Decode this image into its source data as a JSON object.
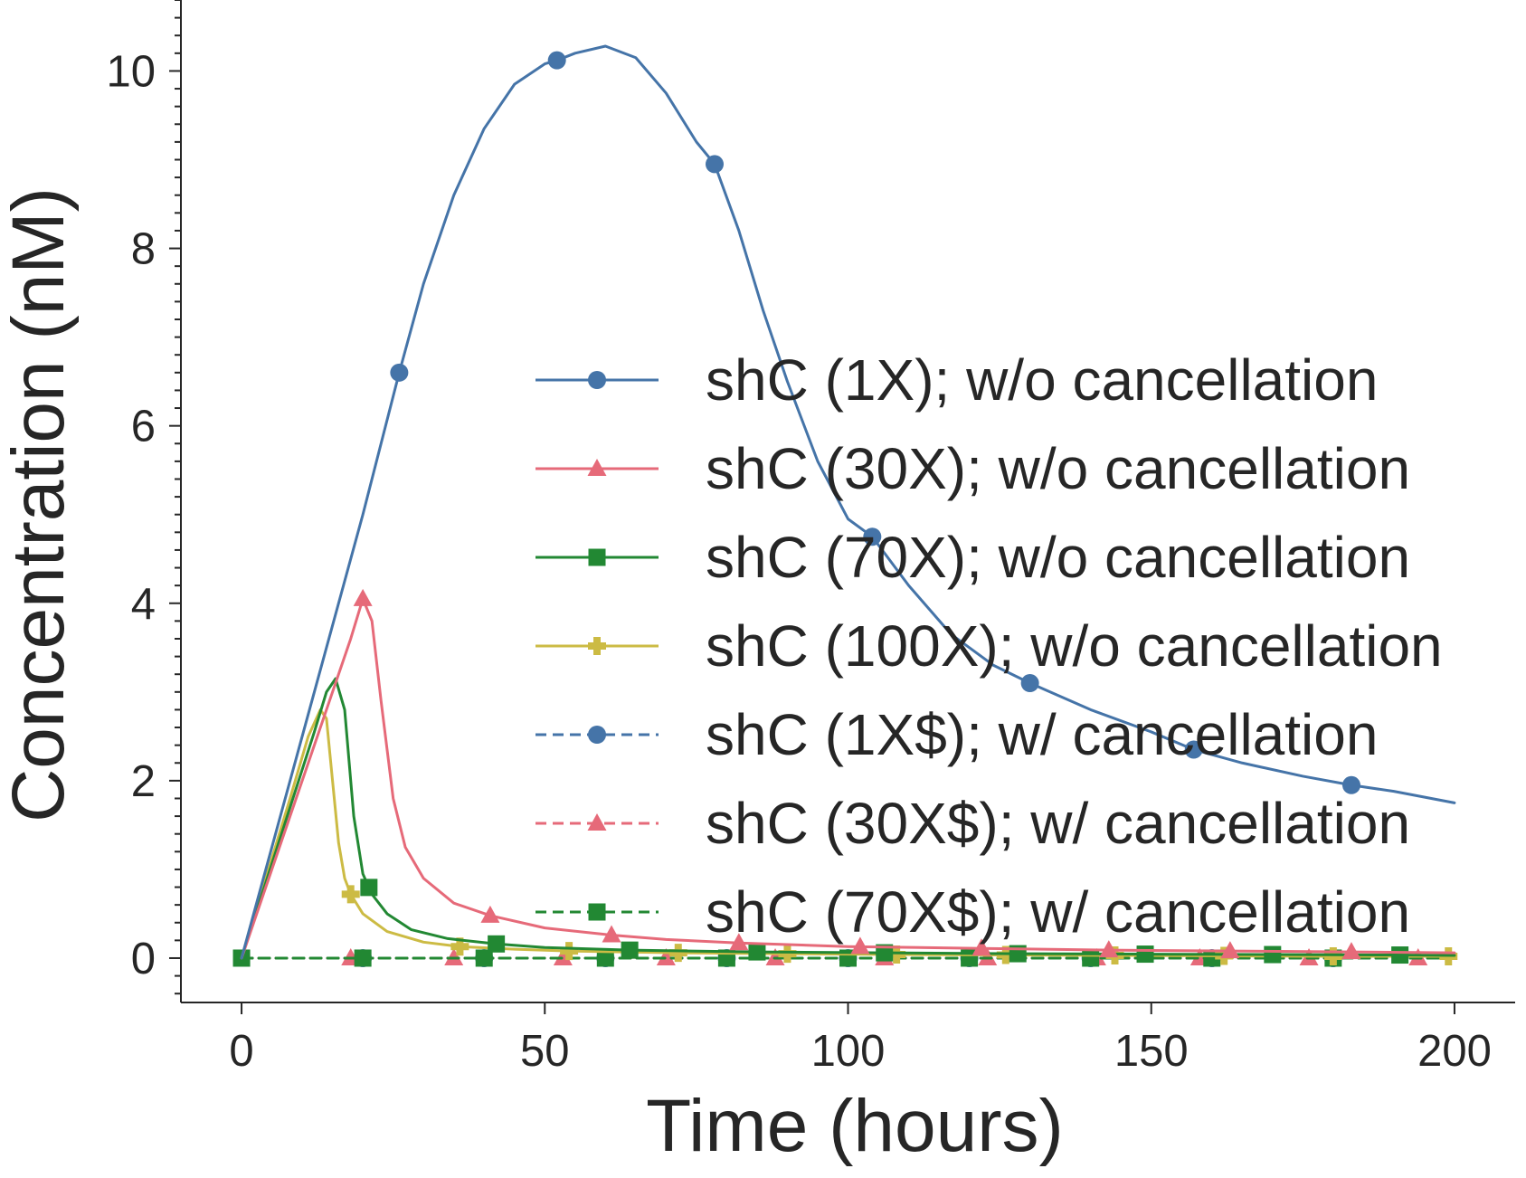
{
  "chart_data": {
    "type": "line",
    "title": "",
    "xlabel": "Time (hours)",
    "ylabel": "Concentration (nM)",
    "xlim": [
      -10,
      210
    ],
    "ylim": [
      -0.5,
      10.8
    ],
    "xticks": [
      0,
      50,
      100,
      150,
      200
    ],
    "yticks": [
      0,
      2,
      4,
      6,
      8,
      10
    ],
    "grid": false,
    "legend_position": "center-right",
    "series": [
      {
        "name": "shC (1X); w/o cancellation",
        "color": "#4574a8",
        "dash": "solid",
        "marker": "circle",
        "x": [
          0,
          4,
          8,
          12,
          16,
          20,
          26,
          30,
          35,
          40,
          45,
          50,
          52,
          55,
          60,
          65,
          70,
          75,
          78,
          82,
          86,
          90,
          95,
          100,
          104,
          110,
          117,
          124,
          130,
          140,
          150,
          157,
          165,
          175,
          183,
          190,
          200
        ],
        "y": [
          0,
          1.0,
          2.0,
          3.0,
          4.0,
          5.0,
          6.6,
          7.6,
          8.6,
          9.35,
          9.85,
          10.08,
          10.12,
          10.2,
          10.28,
          10.15,
          9.75,
          9.2,
          8.95,
          8.2,
          7.3,
          6.5,
          5.6,
          4.95,
          4.75,
          4.2,
          3.65,
          3.3,
          3.1,
          2.8,
          2.55,
          2.35,
          2.2,
          2.05,
          1.95,
          1.88,
          1.75
        ],
        "marker_x": [
          26,
          52,
          78,
          104,
          130,
          157,
          183
        ]
      },
      {
        "name": "shC (30X); w/o cancellation",
        "color": "#e66a79",
        "dash": "solid",
        "marker": "triangle",
        "x": [
          0,
          5,
          10,
          15,
          18,
          20,
          21.5,
          23,
          25,
          27,
          30,
          35,
          41,
          50,
          61,
          70,
          82,
          100,
          122,
          143,
          163,
          183,
          200
        ],
        "y": [
          0,
          1.0,
          2.0,
          3.0,
          3.6,
          4.05,
          3.8,
          2.9,
          1.8,
          1.25,
          0.9,
          0.62,
          0.48,
          0.34,
          0.26,
          0.21,
          0.17,
          0.13,
          0.11,
          0.09,
          0.08,
          0.07,
          0.06
        ],
        "marker_x": [
          20,
          41,
          61,
          82,
          102,
          122,
          143,
          163,
          183
        ]
      },
      {
        "name": "shC (70X); w/o cancellation",
        "color": "#228833",
        "dash": "solid",
        "marker": "square",
        "x": [
          0,
          4,
          8,
          12,
          14,
          15.5,
          17,
          18.5,
          20,
          21.5,
          24,
          28,
          34,
          42,
          50,
          64,
          85,
          106,
          128,
          149,
          170,
          191,
          200
        ],
        "y": [
          0,
          0.85,
          1.7,
          2.55,
          3.0,
          3.15,
          2.8,
          1.6,
          0.95,
          0.72,
          0.5,
          0.32,
          0.22,
          0.16,
          0.12,
          0.09,
          0.07,
          0.06,
          0.05,
          0.045,
          0.04,
          0.035,
          0.03
        ],
        "marker_x": [
          21,
          42,
          64,
          85,
          106,
          128,
          149,
          170,
          191
        ]
      },
      {
        "name": "shC (100X); w/o cancellation",
        "color": "#ccbb44",
        "dash": "solid",
        "marker": "plus",
        "x": [
          0,
          4,
          8,
          11,
          13,
          14,
          15,
          16,
          17,
          18,
          20,
          24,
          30,
          36,
          45,
          54,
          72,
          90,
          108,
          126,
          144,
          162,
          180,
          199
        ],
        "y": [
          0,
          0.9,
          1.8,
          2.5,
          2.8,
          2.7,
          2.0,
          1.3,
          0.9,
          0.72,
          0.5,
          0.3,
          0.18,
          0.13,
          0.1,
          0.08,
          0.06,
          0.05,
          0.04,
          0.035,
          0.03,
          0.025,
          0.02,
          0.02
        ],
        "marker_x": [
          18,
          36,
          54,
          72,
          90,
          108,
          126,
          144,
          162,
          180,
          199
        ]
      },
      {
        "name": "shC (1X$); w/ cancellation",
        "color": "#4574a8",
        "dash": "dashed",
        "marker": "circle",
        "x": [
          0,
          200
        ],
        "y": [
          0,
          0
        ],
        "marker_x": [
          20,
          40,
          60,
          80,
          100,
          120,
          140,
          160,
          180
        ]
      },
      {
        "name": "shC (30X$); w/ cancellation",
        "color": "#e66a79",
        "dash": "dashed",
        "marker": "triangle",
        "x": [
          0,
          200
        ],
        "y": [
          0,
          0
        ],
        "marker_x": [
          18,
          35,
          53,
          70,
          88,
          106,
          123,
          141,
          158,
          176,
          194
        ]
      },
      {
        "name": "shC (70X$); w/ cancellation",
        "color": "#228833",
        "dash": "dashed",
        "marker": "square",
        "x": [
          0,
          200
        ],
        "y": [
          0,
          0
        ],
        "marker_x": [
          0,
          20,
          40,
          60,
          80,
          100,
          120,
          140,
          160,
          180
        ]
      }
    ]
  }
}
